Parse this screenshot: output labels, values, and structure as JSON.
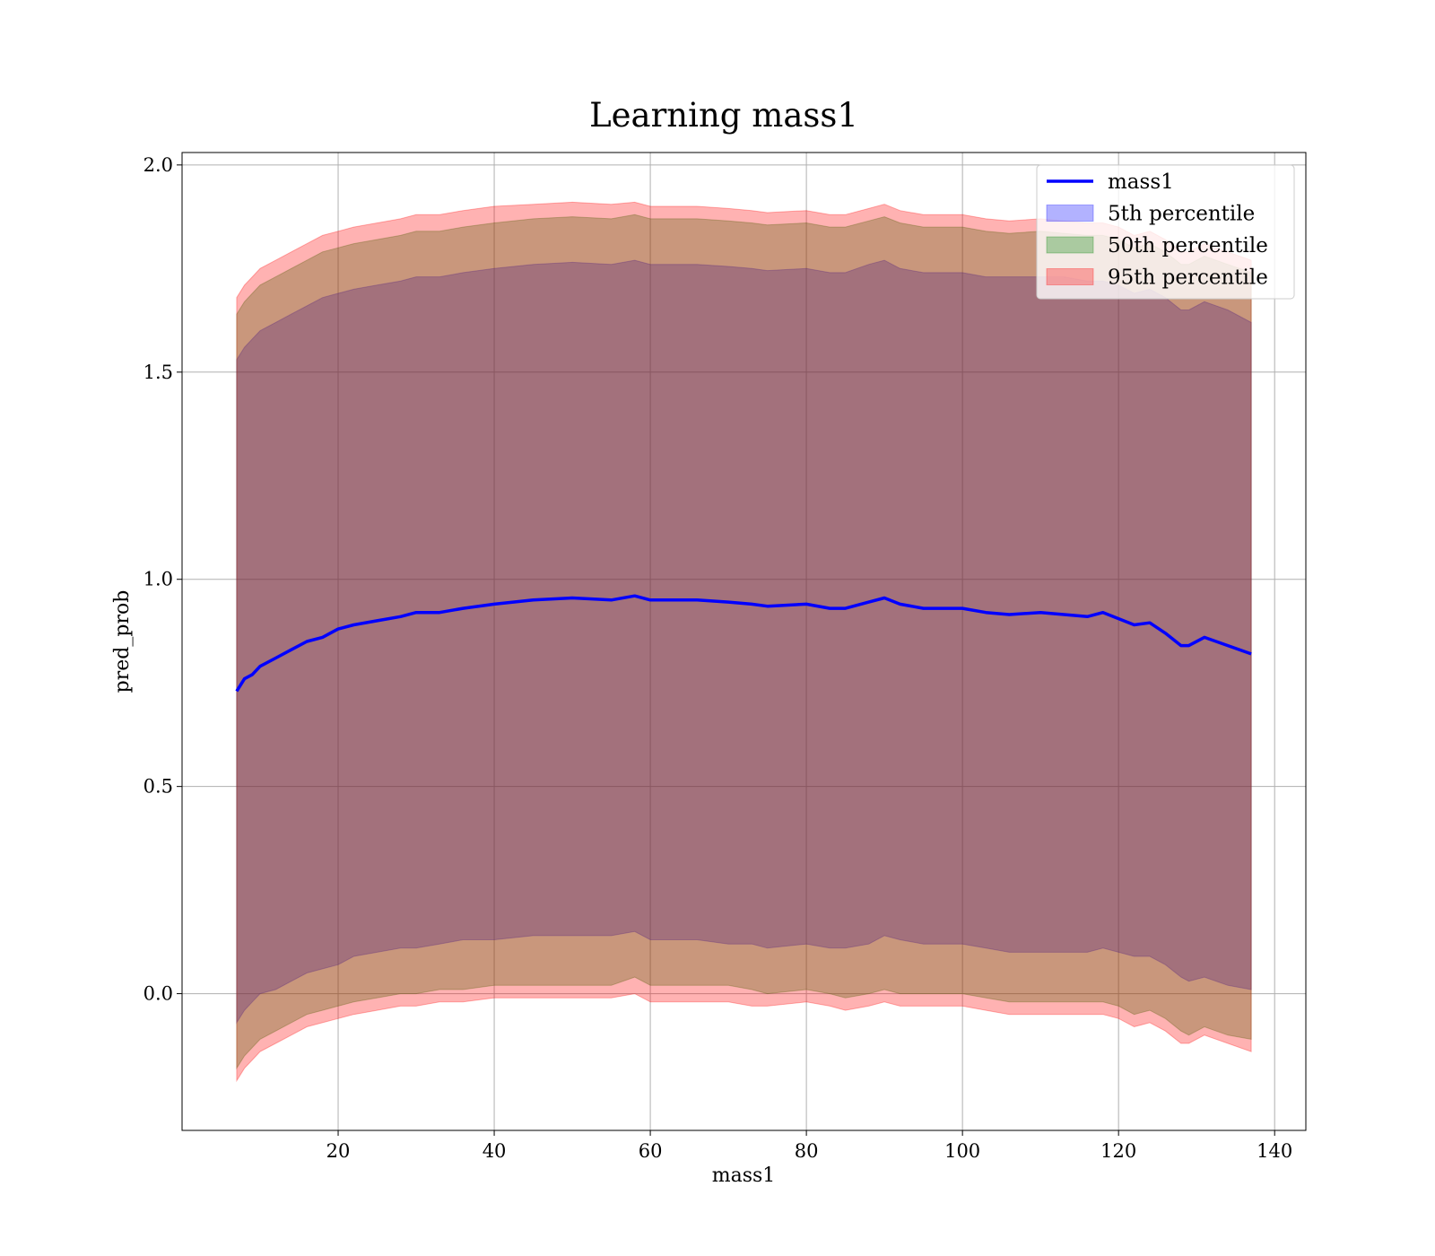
{
  "chart_data": {
    "type": "line",
    "title": "Learning mass1",
    "xlabel": "mass1",
    "ylabel": "pred_prob",
    "xlim": [
      0,
      144
    ],
    "ylim": [
      -0.33,
      2.03
    ],
    "xticks": [
      20,
      40,
      60,
      80,
      100,
      120,
      140
    ],
    "xtick_labels": [
      "20",
      "40",
      "60",
      "80",
      "100",
      "120",
      "140"
    ],
    "yticks": [
      0.0,
      0.5,
      1.0,
      1.5,
      2.0
    ],
    "ytick_labels": [
      "0.0",
      "0.5",
      "1.0",
      "1.5",
      "2.0"
    ],
    "grid": true,
    "legend_position": "top-right",
    "x": [
      7,
      8,
      9,
      10,
      12,
      14,
      16,
      18,
      20,
      22,
      25,
      28,
      30,
      33,
      36,
      40,
      45,
      50,
      55,
      58,
      60,
      63,
      66,
      70,
      73,
      75,
      80,
      83,
      85,
      88,
      90,
      92,
      95,
      100,
      103,
      106,
      110,
      113,
      116,
      118,
      120,
      122,
      124,
      126,
      128,
      129,
      131,
      134,
      137
    ],
    "series": [
      {
        "name": "mass1",
        "kind": "line",
        "color": "#0000ff",
        "values": [
          0.73,
          0.76,
          0.77,
          0.79,
          0.81,
          0.83,
          0.85,
          0.86,
          0.88,
          0.89,
          0.9,
          0.91,
          0.92,
          0.92,
          0.93,
          0.94,
          0.95,
          0.955,
          0.95,
          0.96,
          0.95,
          0.95,
          0.95,
          0.945,
          0.94,
          0.935,
          0.94,
          0.93,
          0.93,
          0.945,
          0.955,
          0.94,
          0.93,
          0.93,
          0.92,
          0.915,
          0.92,
          0.915,
          0.91,
          0.92,
          0.905,
          0.89,
          0.895,
          0.87,
          0.84,
          0.84,
          0.86,
          0.84,
          0.82
        ]
      },
      {
        "name": "5th percentile",
        "kind": "band",
        "color": "#0000ff",
        "lower": [
          -0.07,
          -0.04,
          -0.02,
          0.0,
          0.01,
          0.03,
          0.05,
          0.06,
          0.07,
          0.09,
          0.1,
          0.11,
          0.11,
          0.12,
          0.13,
          0.13,
          0.14,
          0.14,
          0.14,
          0.15,
          0.13,
          0.13,
          0.13,
          0.12,
          0.12,
          0.11,
          0.12,
          0.11,
          0.11,
          0.12,
          0.14,
          0.13,
          0.12,
          0.12,
          0.11,
          0.1,
          0.1,
          0.1,
          0.1,
          0.11,
          0.1,
          0.09,
          0.09,
          0.07,
          0.04,
          0.03,
          0.04,
          0.02,
          0.01
        ],
        "upper": [
          1.53,
          1.56,
          1.58,
          1.6,
          1.62,
          1.64,
          1.66,
          1.68,
          1.69,
          1.7,
          1.71,
          1.72,
          1.73,
          1.73,
          1.74,
          1.75,
          1.76,
          1.765,
          1.76,
          1.77,
          1.76,
          1.76,
          1.76,
          1.755,
          1.75,
          1.745,
          1.75,
          1.74,
          1.74,
          1.76,
          1.77,
          1.75,
          1.74,
          1.74,
          1.73,
          1.73,
          1.73,
          1.73,
          1.72,
          1.72,
          1.71,
          1.69,
          1.7,
          1.68,
          1.65,
          1.65,
          1.67,
          1.65,
          1.62
        ]
      },
      {
        "name": "50th percentile",
        "kind": "band",
        "color": "#008000",
        "lower": [
          -0.18,
          -0.15,
          -0.13,
          -0.11,
          -0.09,
          -0.07,
          -0.05,
          -0.04,
          -0.03,
          -0.02,
          -0.01,
          0.0,
          0.0,
          0.01,
          0.01,
          0.02,
          0.02,
          0.02,
          0.02,
          0.04,
          0.02,
          0.02,
          0.02,
          0.02,
          0.01,
          0.0,
          0.01,
          0.0,
          -0.01,
          0.0,
          0.01,
          0.0,
          0.0,
          0.0,
          -0.01,
          -0.02,
          -0.02,
          -0.02,
          -0.02,
          -0.02,
          -0.03,
          -0.05,
          -0.04,
          -0.06,
          -0.09,
          -0.1,
          -0.08,
          -0.1,
          -0.11
        ],
        "upper": [
          1.64,
          1.67,
          1.69,
          1.71,
          1.73,
          1.75,
          1.77,
          1.79,
          1.8,
          1.81,
          1.82,
          1.83,
          1.84,
          1.84,
          1.85,
          1.86,
          1.87,
          1.875,
          1.87,
          1.88,
          1.87,
          1.87,
          1.87,
          1.865,
          1.86,
          1.855,
          1.86,
          1.85,
          1.85,
          1.865,
          1.875,
          1.86,
          1.85,
          1.85,
          1.84,
          1.835,
          1.84,
          1.835,
          1.83,
          1.83,
          1.82,
          1.8,
          1.81,
          1.79,
          1.76,
          1.76,
          1.78,
          1.76,
          1.74
        ]
      },
      {
        "name": "95th percentile",
        "kind": "band",
        "color": "#ff0000",
        "lower": [
          -0.21,
          -0.18,
          -0.16,
          -0.14,
          -0.12,
          -0.1,
          -0.08,
          -0.07,
          -0.06,
          -0.05,
          -0.04,
          -0.03,
          -0.03,
          -0.02,
          -0.02,
          -0.01,
          -0.01,
          -0.01,
          -0.01,
          0.0,
          -0.02,
          -0.02,
          -0.02,
          -0.02,
          -0.03,
          -0.03,
          -0.02,
          -0.03,
          -0.04,
          -0.03,
          -0.02,
          -0.03,
          -0.03,
          -0.03,
          -0.04,
          -0.05,
          -0.05,
          -0.05,
          -0.05,
          -0.05,
          -0.06,
          -0.08,
          -0.07,
          -0.09,
          -0.12,
          -0.12,
          -0.1,
          -0.12,
          -0.14
        ],
        "upper": [
          1.68,
          1.71,
          1.73,
          1.75,
          1.77,
          1.79,
          1.81,
          1.83,
          1.84,
          1.85,
          1.86,
          1.87,
          1.88,
          1.88,
          1.89,
          1.9,
          1.905,
          1.91,
          1.905,
          1.91,
          1.9,
          1.9,
          1.9,
          1.895,
          1.89,
          1.885,
          1.89,
          1.88,
          1.88,
          1.895,
          1.905,
          1.89,
          1.88,
          1.88,
          1.87,
          1.865,
          1.87,
          1.865,
          1.86,
          1.86,
          1.85,
          1.83,
          1.84,
          1.82,
          1.79,
          1.79,
          1.81,
          1.79,
          1.77
        ]
      }
    ]
  }
}
